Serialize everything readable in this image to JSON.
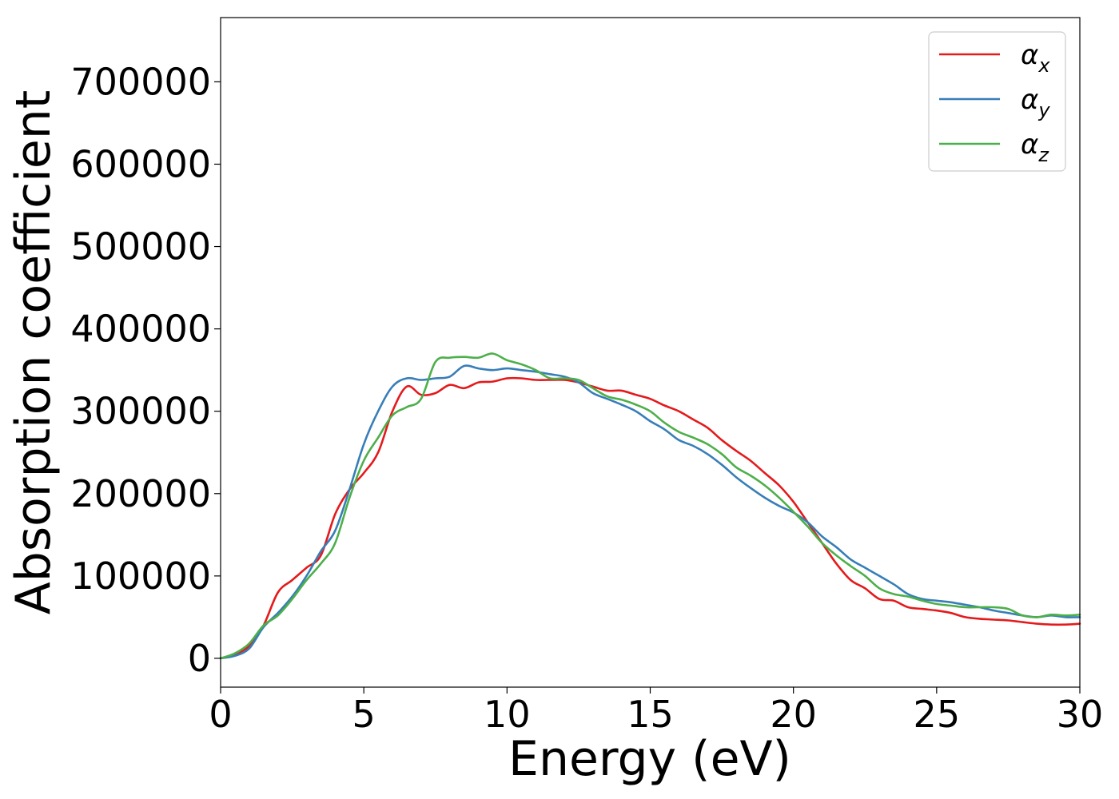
{
  "chart_data": {
    "type": "line",
    "xlabel": "Energy (eV)",
    "ylabel": "Absorption coefficient",
    "xlim": [
      0,
      30
    ],
    "ylim": [
      -35000,
      778000
    ],
    "x_ticks": [
      "0",
      "5",
      "10",
      "15",
      "20",
      "25",
      "30"
    ],
    "y_ticks": [
      "0",
      "100000",
      "200000",
      "300000",
      "400000",
      "500000",
      "600000",
      "700000"
    ],
    "grid": false,
    "legend_position": "top-right",
    "x": [
      0,
      0.5,
      1,
      1.5,
      2,
      2.5,
      3,
      3.5,
      4,
      4.5,
      5,
      5.5,
      6,
      6.5,
      7,
      7.5,
      8,
      8.5,
      9,
      9.5,
      10,
      10.5,
      11,
      11.5,
      12,
      12.5,
      13,
      13.5,
      14,
      14.5,
      15,
      15.5,
      16,
      16.5,
      17,
      17.5,
      18,
      18.5,
      19,
      19.5,
      20,
      20.5,
      21,
      21.5,
      22,
      22.5,
      23,
      23.5,
      24,
      24.5,
      25,
      25.5,
      26,
      26.5,
      27,
      27.5,
      28,
      28.5,
      29,
      29.5,
      30
    ],
    "series": [
      {
        "name": "α",
        "subscript": "x",
        "color": "#e41a1c",
        "values": [
          0,
          5000,
          15000,
          40000,
          80000,
          95000,
          110000,
          125000,
          175000,
          205000,
          225000,
          250000,
          300000,
          330000,
          320000,
          322000,
          332000,
          328000,
          335000,
          336000,
          340000,
          340000,
          338000,
          338000,
          338000,
          335000,
          330000,
          325000,
          325000,
          320000,
          315000,
          307000,
          300000,
          290000,
          280000,
          265000,
          252000,
          240000,
          225000,
          210000,
          190000,
          165000,
          140000,
          115000,
          95000,
          85000,
          72000,
          70000,
          62000,
          60000,
          58000,
          55000,
          50000,
          48000,
          47000,
          46000,
          44000,
          42000,
          41000,
          41000,
          42000
        ]
      },
      {
        "name": "α",
        "subscript": "y",
        "color": "#377eb8",
        "values": [
          0,
          3000,
          12000,
          38000,
          55000,
          75000,
          100000,
          130000,
          155000,
          205000,
          260000,
          300000,
          330000,
          340000,
          338000,
          340000,
          342000,
          355000,
          352000,
          350000,
          352000,
          350000,
          348000,
          345000,
          342000,
          335000,
          322000,
          315000,
          308000,
          300000,
          288000,
          278000,
          265000,
          258000,
          248000,
          235000,
          220000,
          207000,
          195000,
          185000,
          177000,
          165000,
          148000,
          135000,
          120000,
          110000,
          100000,
          90000,
          78000,
          72000,
          70000,
          68000,
          65000,
          62000,
          58000,
          55000,
          52000,
          50000,
          52000,
          50000,
          50000
        ]
      },
      {
        "name": "α",
        "subscript": "z",
        "color": "#4daf4a",
        "values": [
          0,
          6000,
          18000,
          40000,
          52000,
          72000,
          95000,
          115000,
          140000,
          195000,
          240000,
          268000,
          295000,
          305000,
          315000,
          360000,
          365000,
          366000,
          365000,
          370000,
          362000,
          357000,
          350000,
          340000,
          340000,
          338000,
          328000,
          318000,
          314000,
          308000,
          300000,
          286000,
          275000,
          268000,
          260000,
          248000,
          232000,
          222000,
          210000,
          195000,
          178000,
          160000,
          140000,
          125000,
          112000,
          100000,
          85000,
          78000,
          75000,
          70000,
          66000,
          64000,
          62000,
          62000,
          62000,
          60000,
          52000,
          50000,
          53000,
          52000,
          53000
        ]
      }
    ]
  }
}
